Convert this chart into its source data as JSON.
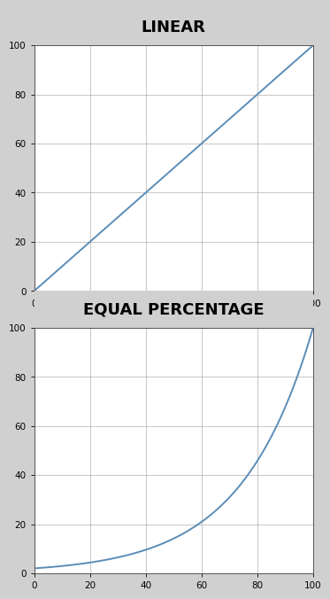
{
  "title1": "LINEAR",
  "title2": "EQUAL PERCENTAGE",
  "xlim": [
    0,
    100
  ],
  "ylim": [
    0,
    100
  ],
  "xticks": [
    0,
    20,
    40,
    60,
    80,
    100
  ],
  "yticks": [
    0,
    20,
    40,
    60,
    80,
    100
  ],
  "line_color": "#5b8db8",
  "line_width": 1.4,
  "bg_color": "#d0d0d0",
  "plot_bg_color": "#ffffff",
  "title_fontsize": 13,
  "title_fontweight": "bold",
  "tick_fontsize": 7.5,
  "grid_color": "#b0b0b0",
  "grid_linewidth": 0.5,
  "equal_pct_rangeability": 50,
  "spine_color": "#555555",
  "spine_linewidth": 0.7
}
